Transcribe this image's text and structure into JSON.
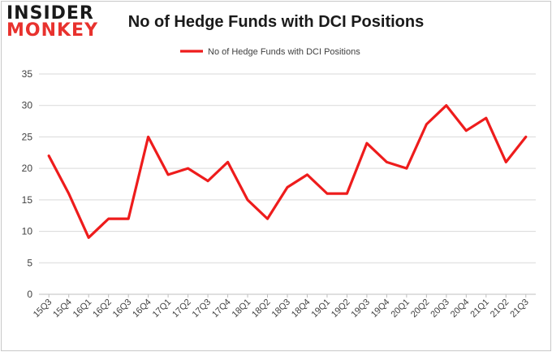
{
  "logo": {
    "line1": "INSIDER",
    "line2": "MONKEY"
  },
  "chart_data": {
    "type": "line",
    "title": "No of Hedge Funds with DCI Positions",
    "xlabel": "",
    "ylabel": "",
    "categories": [
      "15Q3",
      "15Q4",
      "16Q1",
      "16Q2",
      "16Q3",
      "16Q4",
      "17Q1",
      "17Q2",
      "17Q3",
      "17Q4",
      "18Q1",
      "18Q2",
      "18Q3",
      "18Q4",
      "19Q1",
      "19Q2",
      "19Q3",
      "19Q4",
      "20Q1",
      "20Q2",
      "20Q3",
      "20Q4",
      "21Q1",
      "21Q2",
      "21Q3"
    ],
    "series": [
      {
        "name": "No of Hedge Funds with DCI Positions",
        "color": "#ee1c1c",
        "values": [
          22,
          16,
          9,
          12,
          12,
          25,
          19,
          20,
          18,
          21,
          15,
          12,
          17,
          19,
          16,
          16,
          24,
          21,
          20,
          27,
          30,
          26,
          28,
          21,
          25
        ]
      }
    ],
    "ylim": [
      0,
      35
    ],
    "yticks": [
      0,
      5,
      10,
      15,
      20,
      25,
      30,
      35
    ],
    "grid": true,
    "legend": "top-center"
  }
}
